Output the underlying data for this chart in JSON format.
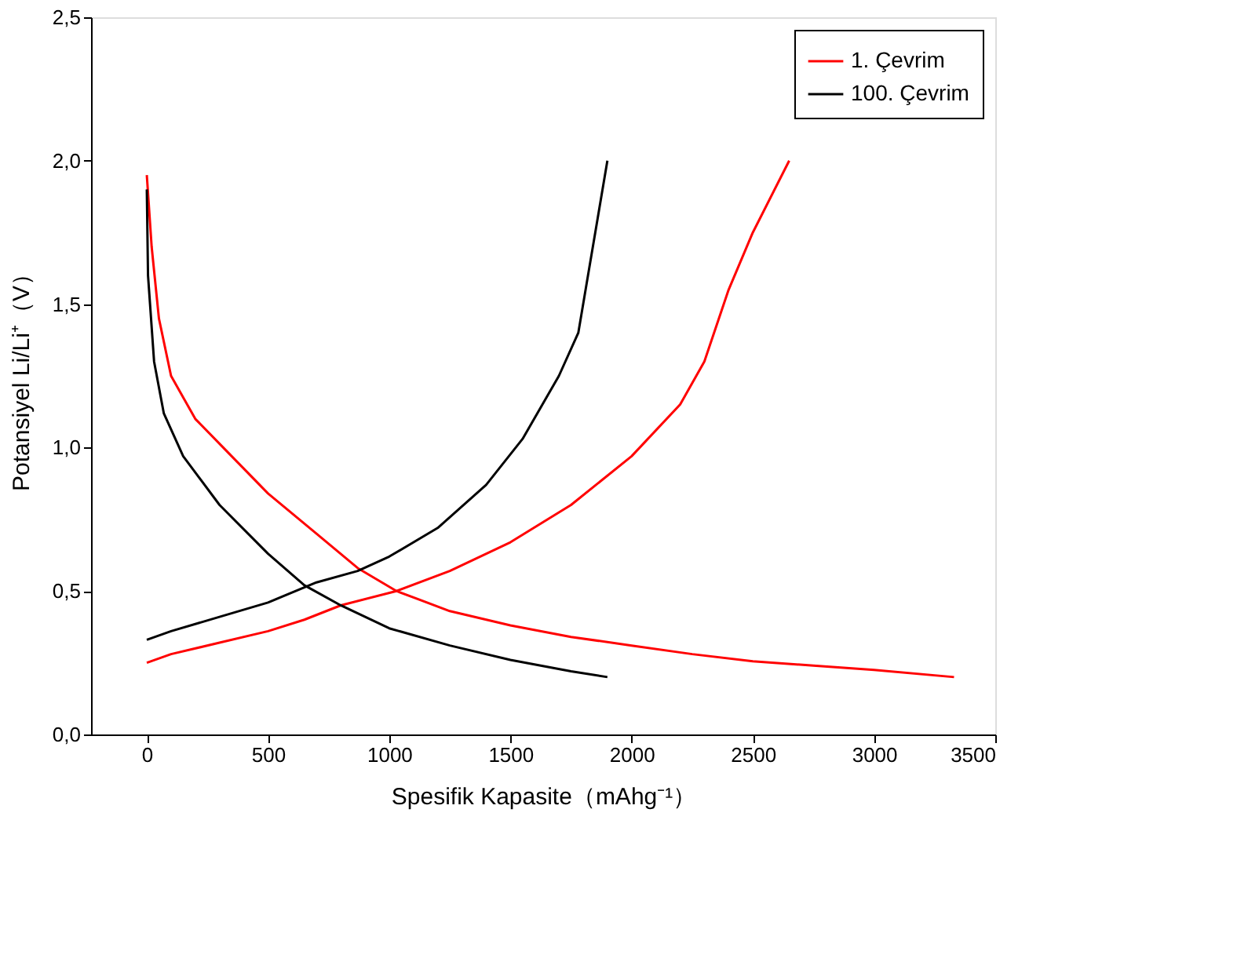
{
  "chart_data": {
    "type": "line",
    "xlabel": "Spesifik Kapasite（mAhg⁻¹）",
    "ylabel": "Potansiyel Li/Li⁺（V）",
    "xlim": [
      -230,
      3500
    ],
    "xticks": [
      0,
      500,
      1000,
      1500,
      2000,
      2500,
      3000,
      3500
    ],
    "ylim": [
      0,
      2.5
    ],
    "yticks": [
      {
        "value": 0,
        "label": "0,0"
      },
      {
        "value": 0.5,
        "label": "0,5"
      },
      {
        "value": 1,
        "label": "1,0"
      },
      {
        "value": 1.5,
        "label": "1,5"
      },
      {
        "value": 2,
        "label": "2,0"
      },
      {
        "value": 2.5,
        "label": "2,5"
      }
    ],
    "grid": false,
    "legend": "top right",
    "marker": "none",
    "line_style": "solid",
    "series": [
      {
        "name": "1. Çevrim",
        "color": "#ff0000",
        "x": [
          0,
          20,
          50,
          100,
          200,
          350,
          500,
          700,
          870,
          1030,
          1250,
          1500,
          1750,
          2000,
          2250,
          2500,
          2750,
          3000,
          3330
        ],
        "values": [
          1.95,
          1.7,
          1.45,
          1.25,
          1.1,
          0.97,
          0.84,
          0.7,
          0.58,
          0.5,
          0.43,
          0.38,
          0.34,
          0.31,
          0.28,
          0.255,
          0.24,
          0.225,
          0.2
        ]
      },
      {
        "color": "#ff0000",
        "x": [
          0,
          100,
          300,
          500,
          650,
          800,
          1030,
          1250,
          1500,
          1750,
          2000,
          2200,
          2300,
          2400,
          2500,
          2650
        ],
        "values": [
          0.25,
          0.28,
          0.32,
          0.36,
          0.4,
          0.45,
          0.5,
          0.57,
          0.67,
          0.8,
          0.97,
          1.15,
          1.3,
          1.55,
          1.75,
          2.0
        ]
      },
      {
        "name": "100. Çevrim",
        "color": "#000000",
        "x": [
          0,
          5,
          30,
          70,
          150,
          300,
          500,
          650,
          800,
          1000,
          1250,
          1500,
          1750,
          1900
        ],
        "values": [
          1.9,
          1.6,
          1.3,
          1.12,
          0.97,
          0.8,
          0.63,
          0.52,
          0.45,
          0.37,
          0.31,
          0.26,
          0.22,
          0.2
        ]
      },
      {
        "color": "#000000",
        "x": [
          0,
          100,
          300,
          500,
          700,
          870,
          1000,
          1200,
          1400,
          1550,
          1700,
          1780,
          1820,
          1860,
          1900
        ],
        "values": [
          0.33,
          0.36,
          0.41,
          0.46,
          0.53,
          0.57,
          0.62,
          0.72,
          0.87,
          1.03,
          1.25,
          1.4,
          1.6,
          1.8,
          2.0
        ]
      }
    ]
  }
}
